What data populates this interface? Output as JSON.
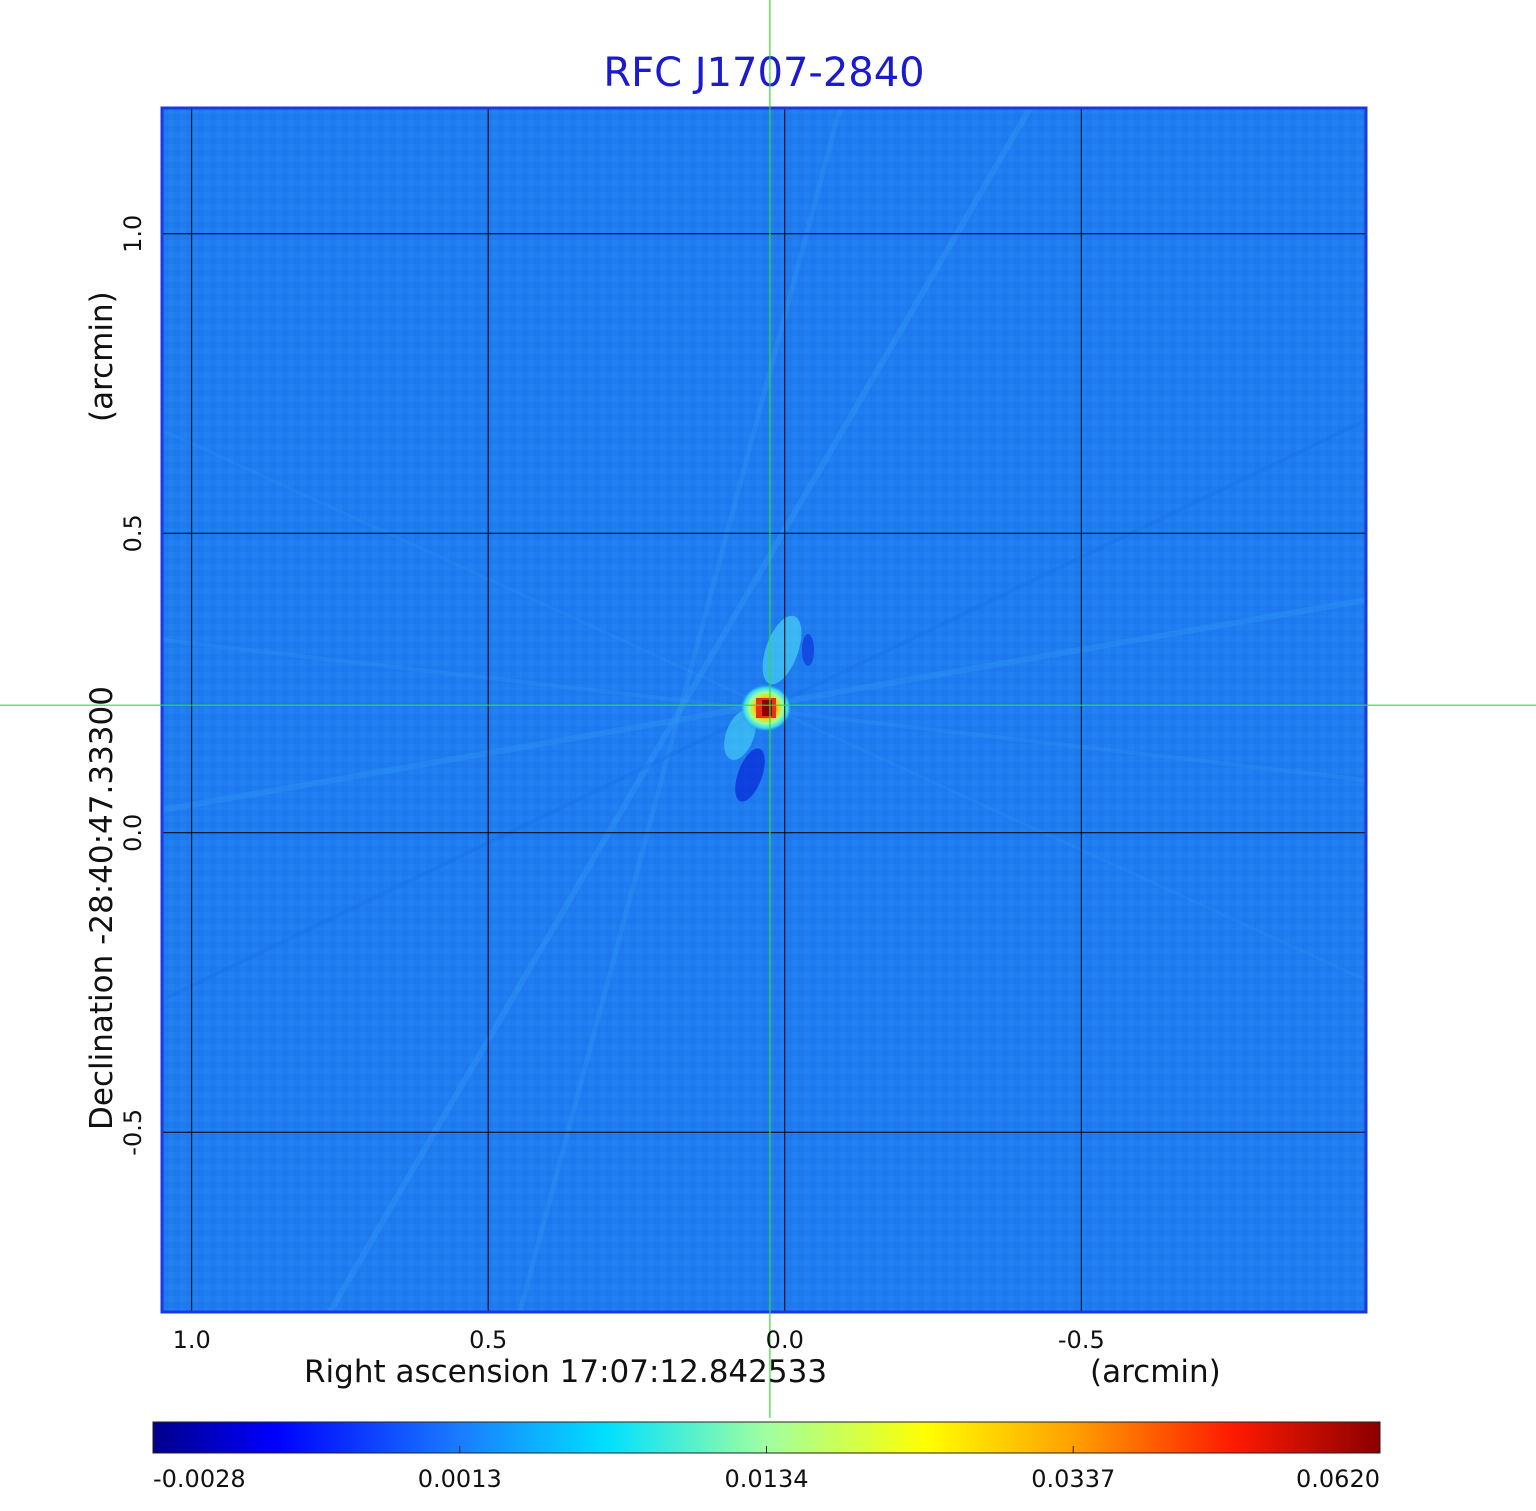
{
  "chart_data": {
    "type": "heatmap",
    "title": "RFC J1707-2840",
    "xlabel": "Right ascension  17:07:12.842533",
    "xunit": "(arcmin)",
    "ylabel": "Declination  -28:40:47.33300",
    "yunit": "(arcmin)",
    "xlim": [
      1.05,
      -0.98
    ],
    "ylim": [
      -0.8,
      1.21
    ],
    "grid": true,
    "x_ticks": [
      {
        "value": 1.0,
        "label": "1.0"
      },
      {
        "value": 0.5,
        "label": "0.5"
      },
      {
        "value": 0.0,
        "label": "0.0"
      },
      {
        "value": -0.5,
        "label": "-0.5"
      }
    ],
    "y_ticks": [
      {
        "value": 1.0,
        "label": "1.0"
      },
      {
        "value": 0.5,
        "label": "0.5"
      },
      {
        "value": 0.0,
        "label": "0.0"
      },
      {
        "value": -0.5,
        "label": "-0.5"
      }
    ],
    "crosshair": {
      "x": 0.025,
      "y": 0.213
    },
    "peak": {
      "x": 0.025,
      "y": 0.213,
      "value": 0.062
    },
    "colorbar": {
      "ticks": [
        {
          "value": -0.0028,
          "label": "-0.0028"
        },
        {
          "value": 0.0013,
          "label": "0.0013"
        },
        {
          "value": 0.0134,
          "label": "0.0134"
        },
        {
          "value": 0.0337,
          "label": "0.0337"
        },
        {
          "value": 0.062,
          "label": "0.0620"
        }
      ],
      "range": [
        -0.0028,
        0.062
      ],
      "colormap": "jet"
    },
    "colors": {
      "title": "#1a1ad0",
      "frame": "#1a3adf",
      "background_field": "#1f7cf0",
      "crosshair": "#33dd33",
      "grid": "#000000"
    }
  }
}
